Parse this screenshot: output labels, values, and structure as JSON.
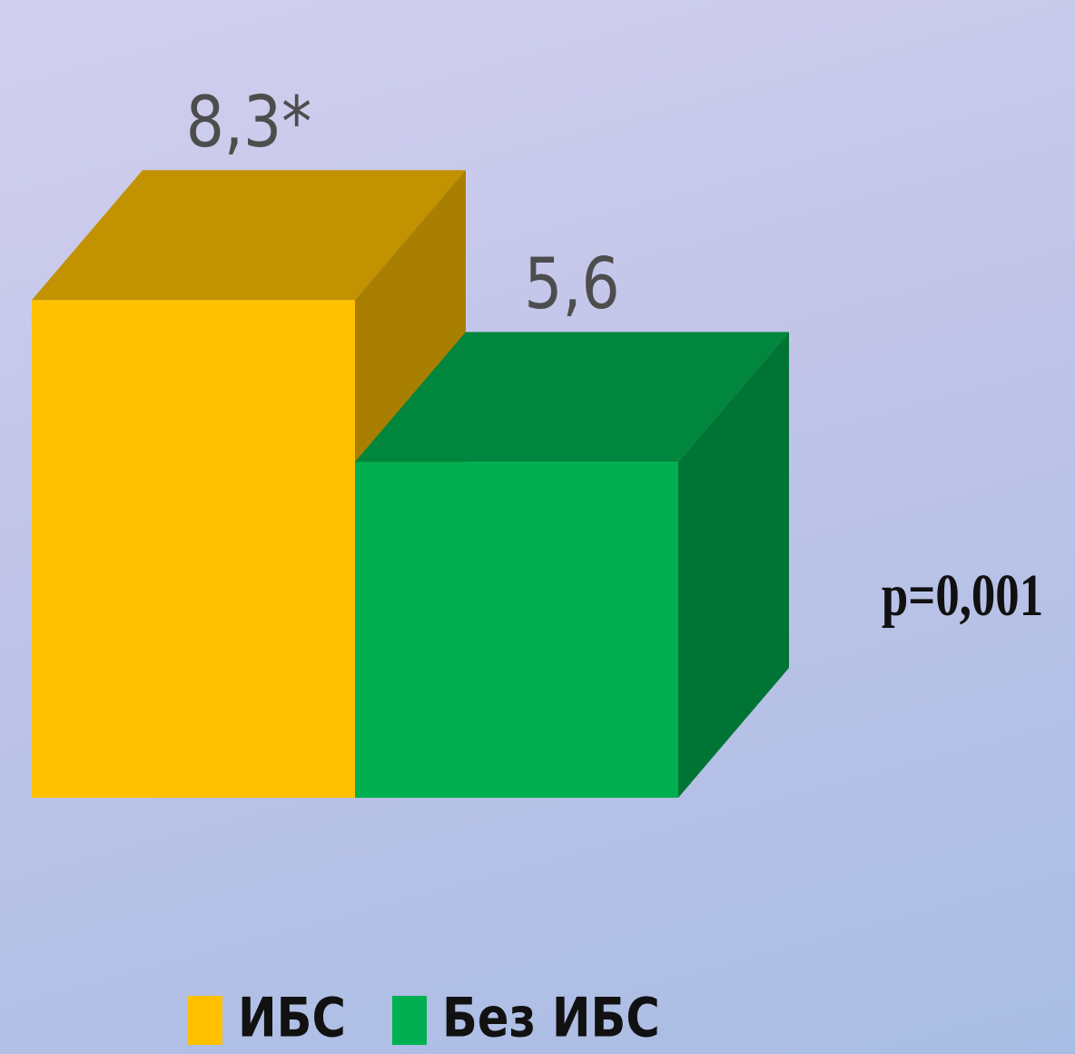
{
  "chart_data": {
    "type": "bar3d",
    "series": [
      {
        "name": "ИБС",
        "color": "#ffc000",
        "values": [
          8.3
        ],
        "value_labels": [
          "8,3*"
        ]
      },
      {
        "name": "Без ИБС",
        "color": "#00b050",
        "values": [
          5.6
        ],
        "value_labels": [
          "5,6"
        ]
      }
    ],
    "annotation": "p=0,001"
  }
}
